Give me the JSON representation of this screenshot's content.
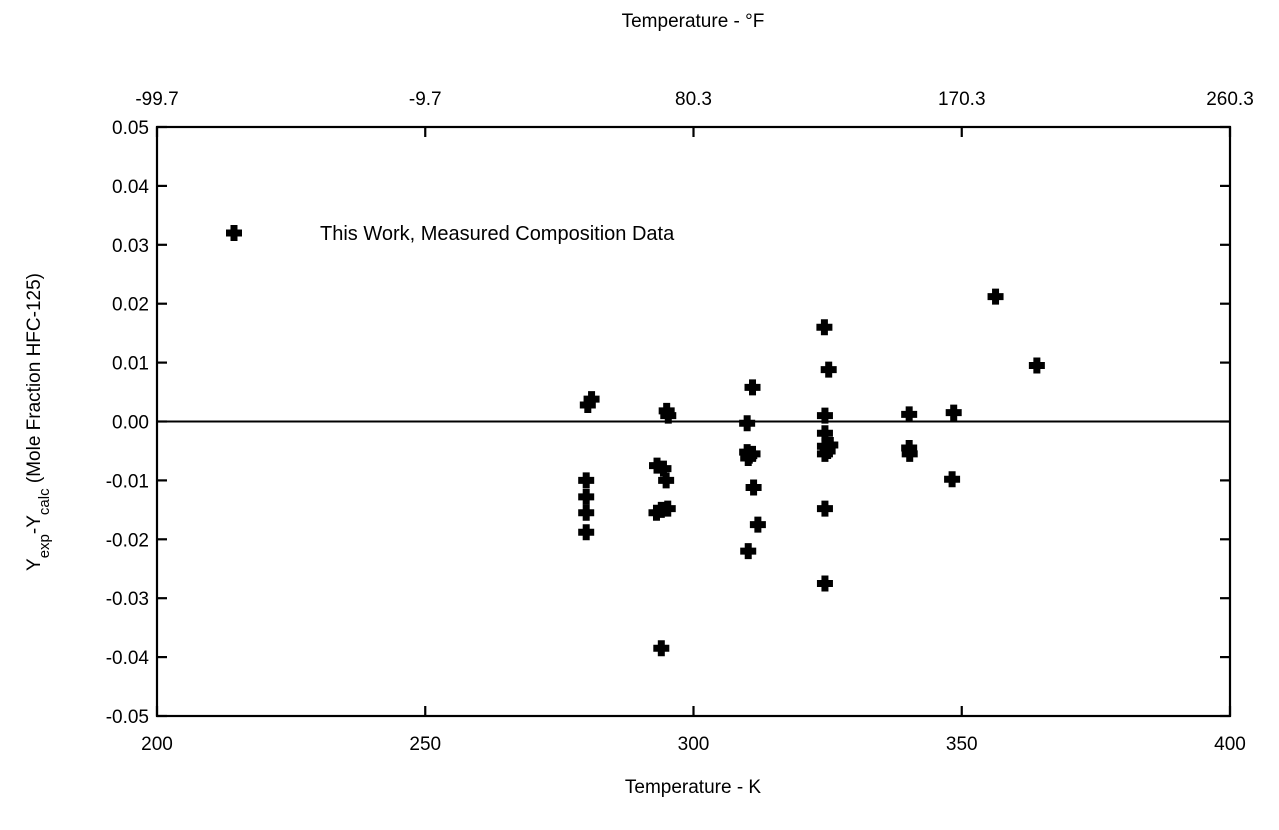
{
  "chart_data": {
    "type": "scatter",
    "top_axis_title": "Temperature - °F",
    "top_tick_labels": [
      "-99.7",
      "-9.7",
      "80.3",
      "170.3",
      "260.3"
    ],
    "xlabel": "Temperature - K",
    "ylabel": {
      "base1": "Y",
      "sub1": "exp",
      "mid": "-Y",
      "sub2": "calc",
      "tail": " (Mole Fraction HFC-125)"
    },
    "xlim": [
      200,
      400
    ],
    "ylim": [
      -0.05,
      0.05
    ],
    "x_ticks": [
      200,
      250,
      300,
      350,
      400
    ],
    "x_tick_labels": [
      "200",
      "250",
      "300",
      "350",
      "400"
    ],
    "y_ticks": [
      0.05,
      0.04,
      0.03,
      0.02,
      0.01,
      0.0,
      -0.01,
      -0.02,
      -0.03,
      -0.04,
      -0.05
    ],
    "y_tick_labels": [
      "0.05",
      "0.04",
      "0.03",
      "0.02",
      "0.01",
      "0.00",
      "-0.01",
      "-0.02",
      "-0.03",
      "-0.04",
      "-0.05"
    ],
    "reference_line_y": 0.0,
    "legend": {
      "label": "This Work, Measured Composition Data",
      "position": "top-left"
    },
    "series": [
      {
        "name": "This Work, Measured Composition Data",
        "marker": "cross",
        "points": [
          [
            280.3,
            0.0028
          ],
          [
            281.0,
            0.0038
          ],
          [
            280.0,
            -0.01
          ],
          [
            280.0,
            -0.0128
          ],
          [
            280.0,
            -0.0155
          ],
          [
            280.0,
            -0.0188
          ],
          [
            293.2,
            -0.0075
          ],
          [
            294.4,
            -0.008
          ],
          [
            294.9,
            -0.01
          ],
          [
            295.0,
            0.0018
          ],
          [
            295.3,
            0.001
          ],
          [
            293.1,
            -0.0155
          ],
          [
            294.0,
            -0.015
          ],
          [
            295.2,
            -0.0148
          ],
          [
            294.0,
            -0.0385
          ],
          [
            310.0,
            -0.0003
          ],
          [
            310.0,
            -0.0052
          ],
          [
            310.2,
            -0.0062
          ],
          [
            310.4,
            -0.0058
          ],
          [
            311.0,
            -0.0055
          ],
          [
            311.0,
            0.0058
          ],
          [
            311.2,
            -0.0112
          ],
          [
            312.0,
            -0.0175
          ],
          [
            310.2,
            -0.022
          ],
          [
            324.4,
            0.016
          ],
          [
            325.2,
            0.0088
          ],
          [
            324.5,
            0.001
          ],
          [
            324.5,
            -0.002
          ],
          [
            324.5,
            -0.0042
          ],
          [
            325.0,
            -0.005
          ],
          [
            325.5,
            -0.004
          ],
          [
            324.5,
            -0.0055
          ],
          [
            324.5,
            -0.0148
          ],
          [
            324.5,
            -0.0275
          ],
          [
            340.2,
            0.0012
          ],
          [
            340.2,
            -0.0045
          ],
          [
            340.3,
            -0.0055
          ],
          [
            348.5,
            0.0015
          ],
          [
            348.2,
            -0.0098
          ],
          [
            356.3,
            0.0212
          ],
          [
            364.0,
            0.0095
          ]
        ]
      }
    ]
  }
}
